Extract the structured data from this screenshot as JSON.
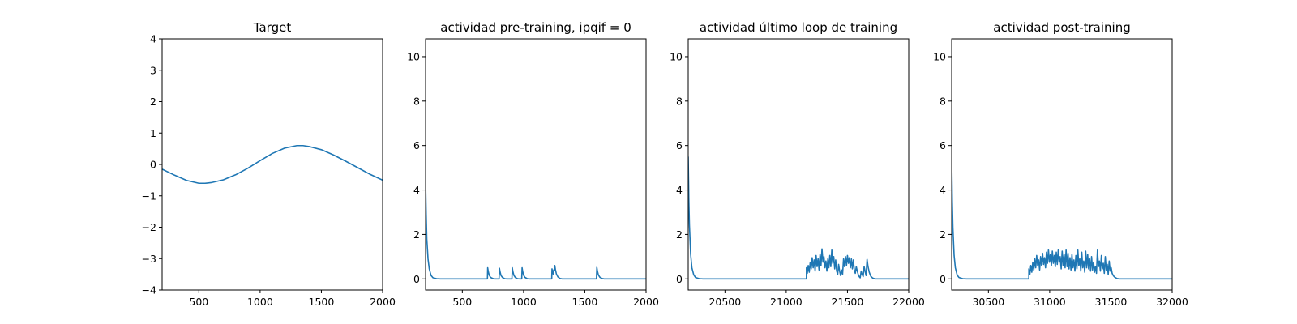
{
  "figure": {
    "background": "#ffffff",
    "line_color": "#1f77b4"
  },
  "chart_data": [
    {
      "type": "line",
      "title": "Target",
      "xlim": [
        200,
        2000
      ],
      "ylim": [
        -4,
        4
      ],
      "xticks": [
        500,
        1000,
        1500,
        2000
      ],
      "yticks": [
        -4,
        -3,
        -2,
        -1,
        0,
        1,
        2,
        3,
        4
      ],
      "grid": false,
      "series": [
        {
          "points": [
            [
              200,
              -0.15
            ],
            [
              300,
              -0.34
            ],
            [
              400,
              -0.51
            ],
            [
              500,
              -0.6
            ],
            [
              550,
              -0.6
            ],
            [
              600,
              -0.58
            ],
            [
              700,
              -0.49
            ],
            [
              800,
              -0.33
            ],
            [
              900,
              -0.12
            ],
            [
              1000,
              0.12
            ],
            [
              1100,
              0.35
            ],
            [
              1200,
              0.52
            ],
            [
              1300,
              0.6
            ],
            [
              1350,
              0.6
            ],
            [
              1400,
              0.57
            ],
            [
              1500,
              0.47
            ],
            [
              1600,
              0.3
            ],
            [
              1700,
              0.1
            ],
            [
              1800,
              -0.11
            ],
            [
              1900,
              -0.32
            ],
            [
              2000,
              -0.5
            ]
          ]
        }
      ]
    },
    {
      "type": "line",
      "title": "actividad pre-training, ipqif = 0",
      "xlim": [
        200,
        2000
      ],
      "ylim": [
        -0.5,
        10.8
      ],
      "xticks": [
        500,
        1000,
        1500,
        2000
      ],
      "yticks": [
        0,
        2,
        4,
        6,
        8,
        10
      ],
      "grid": false,
      "series": [
        {
          "points": [
            [
              200,
              4.4
            ],
            [
              205,
              2.9
            ],
            [
              210,
              1.8
            ],
            [
              220,
              0.9
            ],
            [
              230,
              0.45
            ],
            [
              245,
              0.15
            ],
            [
              260,
              0.05
            ],
            [
              290,
              0.01
            ],
            [
              320,
              0.0
            ],
            [
              705,
              0.0
            ],
            [
              705,
              0.0
            ],
            [
              707,
              0.5
            ],
            [
              712,
              0.33
            ],
            [
              720,
              0.16
            ],
            [
              732,
              0.06
            ],
            [
              748,
              0.02
            ],
            [
              765,
              0.0
            ],
            [
              800,
              0.0
            ],
            [
              803,
              0.48
            ],
            [
              808,
              0.32
            ],
            [
              816,
              0.15
            ],
            [
              828,
              0.06
            ],
            [
              845,
              0.01
            ],
            [
              862,
              0.0
            ],
            [
              905,
              0.0
            ],
            [
              908,
              0.5
            ],
            [
              913,
              0.33
            ],
            [
              921,
              0.16
            ],
            [
              933,
              0.06
            ],
            [
              950,
              0.01
            ],
            [
              968,
              0.0
            ],
            [
              985,
              0.0
            ],
            [
              988,
              0.5
            ],
            [
              993,
              0.33
            ],
            [
              1001,
              0.16
            ],
            [
              1013,
              0.06
            ],
            [
              1030,
              0.01
            ],
            [
              1048,
              0.0
            ],
            [
              1230,
              0.0
            ],
            [
              1232,
              0.45
            ],
            [
              1237,
              0.3
            ],
            [
              1242,
              0.22
            ],
            [
              1246,
              0.4
            ],
            [
              1250,
              0.36
            ],
            [
              1255,
              0.6
            ],
            [
              1260,
              0.42
            ],
            [
              1268,
              0.22
            ],
            [
              1280,
              0.09
            ],
            [
              1297,
              0.02
            ],
            [
              1315,
              0.0
            ],
            [
              1595,
              0.0
            ],
            [
              1598,
              0.52
            ],
            [
              1603,
              0.35
            ],
            [
              1611,
              0.17
            ],
            [
              1623,
              0.07
            ],
            [
              1640,
              0.02
            ],
            [
              1658,
              0.0
            ],
            [
              2000,
              0.0
            ]
          ]
        }
      ]
    },
    {
      "type": "line",
      "title": "actividad último loop de training",
      "xlim": [
        20200,
        22000
      ],
      "ylim": [
        -0.5,
        10.8
      ],
      "xticks": [
        20500,
        21000,
        21500,
        22000
      ],
      "yticks": [
        0,
        2,
        4,
        6,
        8,
        10
      ],
      "grid": false,
      "series": [
        {
          "points": [
            [
              20200,
              5.5
            ],
            [
              20205,
              3.6
            ],
            [
              20210,
              2.4
            ],
            [
              20220,
              1.1
            ],
            [
              20230,
              0.5
            ],
            [
              20245,
              0.18
            ],
            [
              20260,
              0.06
            ],
            [
              20290,
              0.01
            ],
            [
              20320,
              0.0
            ],
            [
              21165,
              0.0
            ],
            [
              21165,
              0.5
            ],
            [
              21172,
              0.25
            ],
            [
              21180,
              0.6
            ],
            [
              21188,
              0.3
            ],
            [
              21196,
              0.75
            ],
            [
              21204,
              0.45
            ],
            [
              21212,
              0.95
            ],
            [
              21220,
              0.5
            ],
            [
              21228,
              0.85
            ],
            [
              21236,
              0.35
            ],
            [
              21244,
              1.05
            ],
            [
              21252,
              0.55
            ],
            [
              21260,
              0.9
            ],
            [
              21268,
              0.4
            ],
            [
              21276,
              1.1
            ],
            [
              21284,
              0.6
            ],
            [
              21292,
              1.35
            ],
            [
              21300,
              0.75
            ],
            [
              21308,
              1.0
            ],
            [
              21316,
              0.5
            ],
            [
              21324,
              0.8
            ],
            [
              21332,
              0.35
            ],
            [
              21340,
              0.9
            ],
            [
              21348,
              0.5
            ],
            [
              21356,
              1.05
            ],
            [
              21364,
              0.55
            ],
            [
              21372,
              1.3
            ],
            [
              21380,
              0.7
            ],
            [
              21388,
              1.0
            ],
            [
              21396,
              0.45
            ],
            [
              21404,
              0.85
            ],
            [
              21412,
              0.35
            ],
            [
              21420,
              0.2
            ],
            [
              21428,
              0.65
            ],
            [
              21436,
              0.35
            ],
            [
              21444,
              0.15
            ],
            [
              21452,
              0.4
            ],
            [
              21460,
              0.2
            ],
            [
              21468,
              0.9
            ],
            [
              21476,
              0.55
            ],
            [
              21484,
              1.0
            ],
            [
              21492,
              0.6
            ],
            [
              21500,
              1.05
            ],
            [
              21508,
              0.7
            ],
            [
              21516,
              0.95
            ],
            [
              21524,
              0.5
            ],
            [
              21532,
              0.9
            ],
            [
              21540,
              0.45
            ],
            [
              21548,
              0.85
            ],
            [
              21556,
              0.4
            ],
            [
              21564,
              0.25
            ],
            [
              21572,
              0.55
            ],
            [
              21580,
              0.35
            ],
            [
              21588,
              0.2
            ],
            [
              21596,
              0.1
            ],
            [
              21604,
              0.05
            ],
            [
              21612,
              0.35
            ],
            [
              21620,
              0.2
            ],
            [
              21628,
              0.1
            ],
            [
              21636,
              0.55
            ],
            [
              21644,
              0.35
            ],
            [
              21652,
              0.15
            ],
            [
              21660,
              0.88
            ],
            [
              21668,
              0.55
            ],
            [
              21678,
              0.3
            ],
            [
              21690,
              0.12
            ],
            [
              21705,
              0.04
            ],
            [
              21725,
              0.0
            ],
            [
              22000,
              0.0
            ]
          ]
        }
      ]
    },
    {
      "type": "line",
      "title": "actividad post-training",
      "xlim": [
        30200,
        32000
      ],
      "ylim": [
        -0.5,
        10.8
      ],
      "xticks": [
        30500,
        31000,
        31500,
        32000
      ],
      "yticks": [
        0,
        2,
        4,
        6,
        8,
        10
      ],
      "grid": false,
      "series": [
        {
          "points": [
            [
              30200,
              5.3
            ],
            [
              30205,
              3.5
            ],
            [
              30210,
              2.3
            ],
            [
              30220,
              1.05
            ],
            [
              30230,
              0.5
            ],
            [
              30245,
              0.17
            ],
            [
              30260,
              0.06
            ],
            [
              30290,
              0.01
            ],
            [
              30320,
              0.0
            ],
            [
              30830,
              0.0
            ],
            [
              30830,
              0.45
            ],
            [
              30838,
              0.2
            ],
            [
              30846,
              0.6
            ],
            [
              30854,
              0.3
            ],
            [
              30862,
              0.75
            ],
            [
              30870,
              0.4
            ],
            [
              30878,
              0.9
            ],
            [
              30886,
              0.5
            ],
            [
              30894,
              1.05
            ],
            [
              30902,
              0.6
            ],
            [
              30910,
              0.85
            ],
            [
              30918,
              0.4
            ],
            [
              30926,
              1.0
            ],
            [
              30934,
              0.6
            ],
            [
              30942,
              1.15
            ],
            [
              30950,
              0.65
            ],
            [
              30958,
              0.95
            ],
            [
              30966,
              0.5
            ],
            [
              30974,
              1.2
            ],
            [
              30982,
              0.7
            ],
            [
              30990,
              1.3
            ],
            [
              30998,
              0.75
            ],
            [
              31006,
              1.1
            ],
            [
              31014,
              0.6
            ],
            [
              31022,
              1.25
            ],
            [
              31030,
              0.7
            ],
            [
              31038,
              1.05
            ],
            [
              31046,
              0.55
            ],
            [
              31054,
              1.2
            ],
            [
              31062,
              0.65
            ],
            [
              31070,
              1.3
            ],
            [
              31078,
              0.75
            ],
            [
              31086,
              1.0
            ],
            [
              31094,
              0.45
            ],
            [
              31102,
              1.25
            ],
            [
              31110,
              0.6
            ],
            [
              31118,
              1.1
            ],
            [
              31126,
              0.5
            ],
            [
              31134,
              1.3
            ],
            [
              31142,
              0.55
            ],
            [
              31150,
              1.15
            ],
            [
              31158,
              0.45
            ],
            [
              31166,
              0.95
            ],
            [
              31174,
              0.4
            ],
            [
              31182,
              1.1
            ],
            [
              31190,
              0.5
            ],
            [
              31198,
              0.85
            ],
            [
              31206,
              0.35
            ],
            [
              31214,
              1.05
            ],
            [
              31222,
              0.45
            ],
            [
              31230,
              1.3
            ],
            [
              31238,
              0.6
            ],
            [
              31246,
              0.9
            ],
            [
              31254,
              0.35
            ],
            [
              31262,
              1.2
            ],
            [
              31270,
              0.5
            ],
            [
              31278,
              0.8
            ],
            [
              31286,
              0.3
            ],
            [
              31294,
              1.25
            ],
            [
              31302,
              0.5
            ],
            [
              31310,
              1.1
            ],
            [
              31318,
              0.45
            ],
            [
              31326,
              0.9
            ],
            [
              31334,
              0.35
            ],
            [
              31342,
              1.0
            ],
            [
              31350,
              0.4
            ],
            [
              31358,
              0.75
            ],
            [
              31366,
              0.3
            ],
            [
              31374,
              0.55
            ],
            [
              31382,
              0.25
            ],
            [
              31390,
              1.3
            ],
            [
              31398,
              0.55
            ],
            [
              31406,
              0.8
            ],
            [
              31414,
              0.35
            ],
            [
              31422,
              1.05
            ],
            [
              31430,
              0.45
            ],
            [
              31438,
              0.7
            ],
            [
              31446,
              0.25
            ],
            [
              31454,
              1.0
            ],
            [
              31462,
              0.4
            ],
            [
              31470,
              0.65
            ],
            [
              31478,
              0.2
            ],
            [
              31486,
              0.8
            ],
            [
              31494,
              0.35
            ],
            [
              31502,
              0.5
            ],
            [
              31510,
              0.25
            ],
            [
              31520,
              0.14
            ],
            [
              31532,
              0.07
            ],
            [
              31548,
              0.02
            ],
            [
              31570,
              0.0
            ],
            [
              32000,
              0.0
            ]
          ]
        }
      ]
    }
  ]
}
